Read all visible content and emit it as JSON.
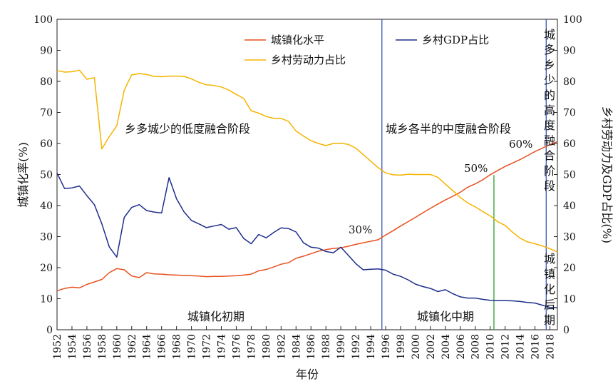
{
  "chart_data": {
    "type": "line",
    "xlabel": "年份",
    "ylabel_left": "城镇化率(%)",
    "ylabel_right": "乡村劳动力及GDP占比(%)",
    "xlim": [
      1952,
      2019
    ],
    "ylim": [
      0,
      100
    ],
    "y_ticks": [
      "0",
      "10",
      "20",
      "30",
      "40",
      "50",
      "60",
      "70",
      "80",
      "90",
      "100"
    ],
    "x_ticks": [
      "1952",
      "1954",
      "1956",
      "1958",
      "1960",
      "1962",
      "1964",
      "1966",
      "1968",
      "1970",
      "1972",
      "1974",
      "1976",
      "1978",
      "1980",
      "1982",
      "1984",
      "1986",
      "1988",
      "1990",
      "1992",
      "1994",
      "1996",
      "1998",
      "2000",
      "2002",
      "2004",
      "2006",
      "2008",
      "2010",
      "2012",
      "2014",
      "2016",
      "2018"
    ],
    "grid": false,
    "legend_placement": "top",
    "series": [
      {
        "name": "城镇化水平",
        "color": "#e8501e",
        "x": [
          1952,
          1953,
          1954,
          1955,
          1956,
          1957,
          1958,
          1959,
          1960,
          1961,
          1962,
          1963,
          1964,
          1965,
          1966,
          1967,
          1968,
          1969,
          1970,
          1971,
          1972,
          1973,
          1974,
          1975,
          1976,
          1977,
          1978,
          1979,
          1980,
          1981,
          1982,
          1983,
          1984,
          1985,
          1986,
          1987,
          1988,
          1989,
          1990,
          1991,
          1992,
          1993,
          1994,
          1995,
          1996,
          1997,
          1998,
          1999,
          2000,
          2001,
          2002,
          2003,
          2004,
          2005,
          2006,
          2007,
          2008,
          2009,
          2010,
          2011,
          2012,
          2013,
          2014,
          2015,
          2016,
          2017,
          2018,
          2019
        ],
        "y": [
          12.5,
          13.3,
          13.7,
          13.5,
          14.6,
          15.4,
          16.2,
          18.4,
          19.7,
          19.3,
          17.3,
          16.8,
          18.4,
          18.0,
          17.9,
          17.7,
          17.6,
          17.5,
          17.4,
          17.3,
          17.1,
          17.2,
          17.2,
          17.3,
          17.4,
          17.6,
          17.9,
          19.0,
          19.4,
          20.2,
          21.1,
          21.6,
          23.0,
          23.7,
          24.5,
          25.3,
          25.8,
          26.2,
          26.4,
          26.9,
          27.5,
          28.0,
          28.5,
          29.0,
          30.5,
          31.9,
          33.4,
          34.8,
          36.2,
          37.7,
          39.1,
          40.5,
          41.8,
          43.0,
          44.3,
          45.9,
          47.0,
          48.3,
          49.9,
          51.3,
          52.6,
          53.7,
          54.8,
          56.1,
          57.4,
          58.5,
          59.6,
          60.6
        ]
      },
      {
        "name": "乡村劳动力占比",
        "color": "#f5b400",
        "x": [
          1952,
          1953,
          1954,
          1955,
          1956,
          1957,
          1958,
          1959,
          1960,
          1961,
          1962,
          1963,
          1964,
          1965,
          1966,
          1967,
          1968,
          1969,
          1970,
          1971,
          1972,
          1973,
          1974,
          1975,
          1976,
          1977,
          1978,
          1979,
          1980,
          1981,
          1982,
          1983,
          1984,
          1985,
          1986,
          1987,
          1988,
          1989,
          1990,
          1991,
          1992,
          1993,
          1994,
          1995,
          1996,
          1997,
          1998,
          1999,
          2000,
          2001,
          2002,
          2003,
          2004,
          2005,
          2006,
          2007,
          2008,
          2009,
          2010,
          2011,
          2012,
          2013,
          2014,
          2015,
          2016,
          2017,
          2018,
          2019
        ],
        "y": [
          83.5,
          83.0,
          83.1,
          83.6,
          80.7,
          81.2,
          58.2,
          62.2,
          65.7,
          77.2,
          82.1,
          82.5,
          82.2,
          81.6,
          81.5,
          81.7,
          81.7,
          81.6,
          80.8,
          79.7,
          78.9,
          78.7,
          78.2,
          77.2,
          75.8,
          74.5,
          70.5,
          69.8,
          68.7,
          68.1,
          68.1,
          67.1,
          64.0,
          62.4,
          60.9,
          60.0,
          59.3,
          60.0,
          60.1,
          59.7,
          58.5,
          56.4,
          54.3,
          52.2,
          50.5,
          49.9,
          49.8,
          50.1,
          50.0,
          50.0,
          50.0,
          49.1,
          46.9,
          44.8,
          42.6,
          40.8,
          39.6,
          38.1,
          36.7,
          34.8,
          33.6,
          31.4,
          29.5,
          28.3,
          27.7,
          27.0,
          26.1,
          25.1
        ]
      },
      {
        "name": "乡村GDP占比",
        "color": "#1f2e8c",
        "x": [
          1952,
          1953,
          1954,
          1955,
          1956,
          1957,
          1958,
          1959,
          1960,
          1961,
          1962,
          1963,
          1964,
          1965,
          1966,
          1967,
          1968,
          1969,
          1970,
          1971,
          1972,
          1973,
          1974,
          1975,
          1976,
          1977,
          1978,
          1979,
          1980,
          1981,
          1982,
          1983,
          1984,
          1985,
          1986,
          1987,
          1988,
          1989,
          1990,
          1991,
          1992,
          1993,
          1994,
          1995,
          1996,
          1997,
          1998,
          1999,
          2000,
          2001,
          2002,
          2003,
          2004,
          2005,
          2006,
          2007,
          2008,
          2009,
          2010,
          2011,
          2012,
          2013,
          2014,
          2015,
          2016,
          2017,
          2018,
          2019
        ],
        "y": [
          50.5,
          45.5,
          45.7,
          46.3,
          43.2,
          40.3,
          34.1,
          26.7,
          23.4,
          36.2,
          39.4,
          40.3,
          38.4,
          37.9,
          37.6,
          49.0,
          42.2,
          38.0,
          35.2,
          34.1,
          32.9,
          33.4,
          33.9,
          32.4,
          32.9,
          29.4,
          27.7,
          30.7,
          29.6,
          31.3,
          32.8,
          32.6,
          31.5,
          28.0,
          26.6,
          26.3,
          25.2,
          24.8,
          26.6,
          24.0,
          21.3,
          19.3,
          19.5,
          19.6,
          19.2,
          17.9,
          17.2,
          16.1,
          14.7,
          13.9,
          13.3,
          12.3,
          12.9,
          11.6,
          10.6,
          10.2,
          10.2,
          9.8,
          9.5,
          9.4,
          9.4,
          9.3,
          9.1,
          8.8,
          8.6,
          7.9,
          7.2,
          7.1
        ]
      }
    ],
    "phase_lines": [
      {
        "x": 1995.5,
        "color": "#3a56b8"
      },
      {
        "x": 2017.5,
        "color": "#3a56b8"
      }
    ],
    "marker_lines": [
      {
        "x": 2010.5,
        "y_from": 0,
        "y_to": 49.8,
        "color": "#2aa02a"
      }
    ],
    "annotations": {
      "phase_low_fusion": "乡多城少的低度融合阶段",
      "phase_mid_fusion": "城乡各半的中度融合阶段",
      "phase_high_fusion": "城多乡少的高度融合阶段",
      "stage_early": "城镇化初期",
      "stage_mid": "城镇化中期",
      "stage_late": "城镇化后期",
      "pct_30": "30%",
      "pct_50": "50%",
      "pct_60": "60%"
    }
  }
}
